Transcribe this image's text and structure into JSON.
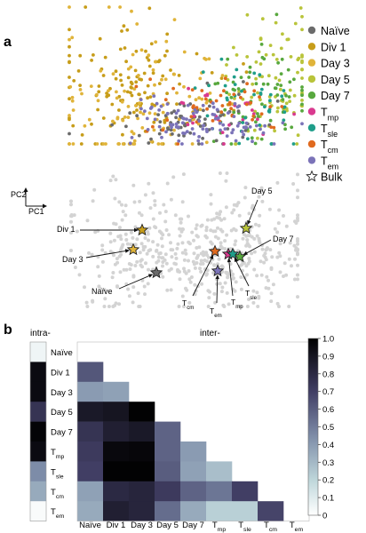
{
  "panel_a": {
    "label": "a",
    "axis_y": "PC2",
    "axis_x": "PC1",
    "legend": [
      {
        "label": "Naïve",
        "color": "#6b6b6b",
        "shape": "circle"
      },
      {
        "label": "Div 1",
        "color": "#c79d1a",
        "shape": "circle"
      },
      {
        "label": "Day 3",
        "color": "#e0b43a",
        "shape": "circle"
      },
      {
        "label": "Day 5",
        "color": "#b9c43a",
        "shape": "circle"
      },
      {
        "label": "Day 7",
        "color": "#58a83e",
        "shape": "circle"
      },
      {
        "label": "T",
        "sub": "mp",
        "color": "#d93a8f",
        "shape": "circle"
      },
      {
        "label": "T",
        "sub": "sle",
        "color": "#1f9e8a",
        "shape": "circle"
      },
      {
        "label": "T",
        "sub": "cm",
        "color": "#e06a1f",
        "shape": "circle"
      },
      {
        "label": "T",
        "sub": "em",
        "color": "#7b73b8",
        "shape": "circle"
      },
      {
        "label": "Bulk",
        "color": "#ffffff",
        "shape": "star"
      }
    ],
    "bulk_labels": [
      {
        "label": "Div 1"
      },
      {
        "label": "Day 3"
      },
      {
        "label": "Naïve"
      },
      {
        "label": "Day 5"
      },
      {
        "label": "Day 7"
      },
      {
        "label": "T",
        "sub": "cm"
      },
      {
        "label": "T",
        "sub": "em"
      },
      {
        "label": "T",
        "sub": "mp"
      },
      {
        "label": "T",
        "sub": "sle"
      }
    ]
  },
  "panel_b": {
    "label": "b",
    "intra_label": "intra-",
    "inter_label": "inter-",
    "row_labels": [
      {
        "label": "Naïve"
      },
      {
        "label": "Div 1"
      },
      {
        "label": "Day 3"
      },
      {
        "label": "Day 5"
      },
      {
        "label": "Day 7"
      },
      {
        "label": "T",
        "sub": "mp"
      },
      {
        "label": "T",
        "sub": "sle"
      },
      {
        "label": "T",
        "sub": "cm"
      },
      {
        "label": "T",
        "sub": "em"
      }
    ],
    "col_labels": [
      {
        "label": "Naïve"
      },
      {
        "label": "Div 1"
      },
      {
        "label": "Day 3"
      },
      {
        "label": "Day 5"
      },
      {
        "label": "Day 7"
      },
      {
        "label": "T",
        "sub": "mp"
      },
      {
        "label": "T",
        "sub": "sle"
      },
      {
        "label": "T",
        "sub": "cm"
      },
      {
        "label": "T",
        "sub": "em"
      }
    ],
    "colorbar_ticks": [
      "1.0",
      "0.9",
      "0.8",
      "0.7",
      "0.6",
      "0.5",
      "0.4",
      "0.3",
      "0.2",
      "0.1",
      "0"
    ]
  },
  "chart_data": {
    "type": "heatmap",
    "intra_values": [
      0.05,
      0.95,
      0.95,
      0.75,
      0.98,
      0.95,
      0.45,
      0.35,
      0.02
    ],
    "inter_values": [
      [],
      [
        0.62
      ],
      [
        0.4,
        0.38
      ],
      [
        0.88,
        0.9,
        0.99
      ],
      [
        0.75,
        0.85,
        0.88,
        0.58
      ],
      [
        0.72,
        0.96,
        0.97,
        0.58,
        0.4
      ],
      [
        0.7,
        0.99,
        0.99,
        0.6,
        0.38,
        0.28
      ],
      [
        0.38,
        0.8,
        0.82,
        0.72,
        0.58,
        0.52,
        0.7
      ],
      [
        0.35,
        0.85,
        0.82,
        0.55,
        0.35,
        0.22,
        0.22,
        0.68
      ]
    ],
    "colorbar_range": [
      0,
      1
    ]
  }
}
